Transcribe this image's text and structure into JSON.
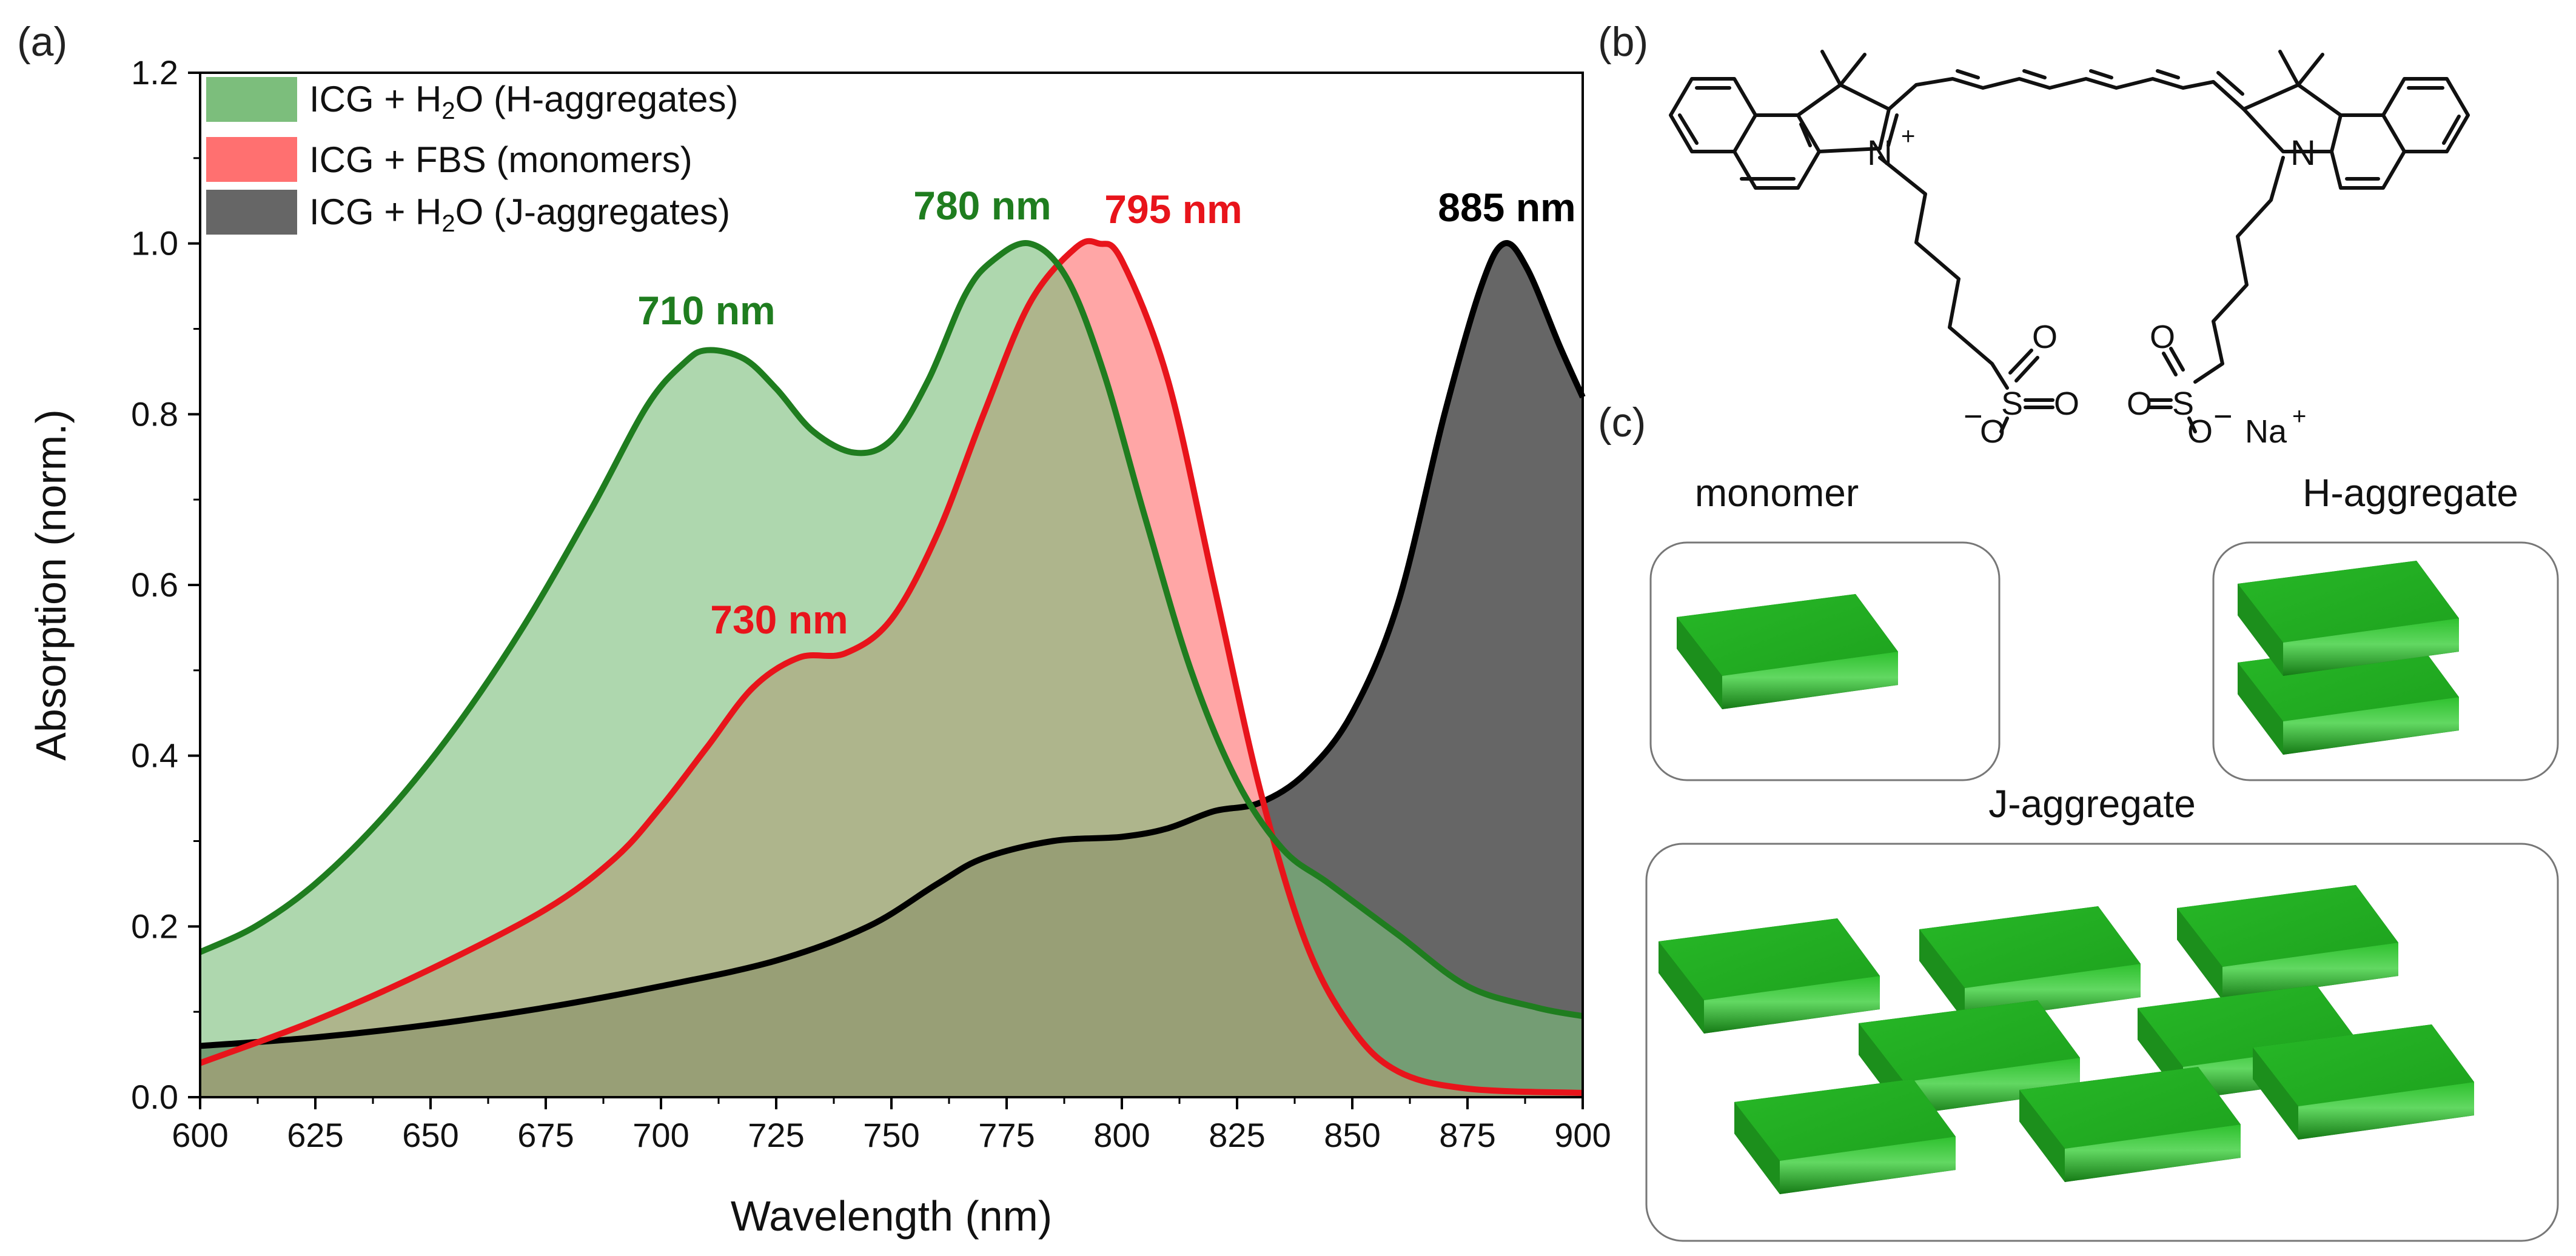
{
  "panel_labels": {
    "a": "(a)",
    "b": "(b)",
    "c": "(c)"
  },
  "chart_data": {
    "type": "area",
    "title": "",
    "xlabel": "Wavelength (nm)",
    "ylabel": "Absorption (norm.)",
    "xlim": [
      600,
      900
    ],
    "ylim": [
      0,
      1.2
    ],
    "xticks": [
      600,
      625,
      650,
      675,
      700,
      725,
      750,
      775,
      800,
      825,
      850,
      875,
      900
    ],
    "yticks": [
      0.0,
      0.2,
      0.4,
      0.6,
      0.8,
      1.0,
      1.2
    ],
    "grid": false,
    "legend_position": "top-left",
    "series": [
      {
        "name": "ICG + H2O (J-aggregates)",
        "legend_main": "ICG + H",
        "legend_sub": "2",
        "legend_rest": "O (J-aggregates)",
        "fill": "#666666",
        "stroke": "#000000",
        "x": [
          600,
          625,
          650,
          675,
          700,
          725,
          745,
          760,
          770,
          785,
          800,
          810,
          820,
          830,
          840,
          850,
          860,
          870,
          878,
          883,
          888,
          895,
          900
        ],
        "y": [
          0.06,
          0.07,
          0.085,
          0.105,
          0.13,
          0.16,
          0.2,
          0.25,
          0.28,
          0.3,
          0.305,
          0.315,
          0.335,
          0.345,
          0.38,
          0.45,
          0.58,
          0.8,
          0.95,
          1.0,
          0.97,
          0.88,
          0.82
        ]
      },
      {
        "name": "ICG + FBS (monomers)",
        "legend_main": "ICG + FBS (monomers)",
        "legend_sub": "",
        "legend_rest": "",
        "fill": "#ff7070",
        "stroke": "#e8141b",
        "x": [
          600,
          625,
          650,
          675,
          690,
          700,
          710,
          720,
          730,
          740,
          750,
          760,
          770,
          780,
          790,
          795,
          800,
          810,
          820,
          830,
          840,
          850,
          860,
          875,
          900
        ],
        "y": [
          0.04,
          0.09,
          0.15,
          0.22,
          0.28,
          0.34,
          0.41,
          0.48,
          0.515,
          0.52,
          0.56,
          0.66,
          0.8,
          0.93,
          0.995,
          1.0,
          0.98,
          0.84,
          0.6,
          0.36,
          0.18,
          0.08,
          0.03,
          0.01,
          0.005
        ]
      },
      {
        "name": "ICG + H2O (H-aggregates)",
        "legend_main": "ICG + H",
        "legend_sub": "2",
        "legend_rest": "O (H-aggregates)",
        "fill": "#7cbe7c",
        "stroke": "#1f7d1f",
        "x": [
          600,
          612,
          625,
          640,
          655,
          670,
          685,
          697,
          705,
          710,
          718,
          725,
          733,
          742,
          750,
          758,
          766,
          772,
          780,
          788,
          796,
          805,
          815,
          825,
          835,
          845,
          860,
          875,
          890,
          900
        ],
        "y": [
          0.17,
          0.2,
          0.25,
          0.33,
          0.43,
          0.55,
          0.69,
          0.81,
          0.86,
          0.875,
          0.865,
          0.83,
          0.78,
          0.755,
          0.77,
          0.84,
          0.94,
          0.98,
          1.0,
          0.96,
          0.85,
          0.68,
          0.5,
          0.37,
          0.29,
          0.25,
          0.19,
          0.13,
          0.105,
          0.095
        ]
      }
    ],
    "annotations": [
      {
        "text": "710 nm",
        "color": "#1f7d1f"
      },
      {
        "text": "780 nm",
        "color": "#1f7d1f"
      },
      {
        "text": "795 nm",
        "color": "#e8141b"
      },
      {
        "text": "730 nm",
        "color": "#e8141b"
      },
      {
        "text": "885 nm",
        "color": "#000000"
      }
    ]
  },
  "structure": {
    "n_plus": "N",
    "plus_sign": "+",
    "n_right": "N",
    "left_sulfonate": {
      "s": "S",
      "o_top": "O",
      "o_right": "O",
      "minus": "−",
      "o_bottom": "O"
    },
    "right_sulfonate": {
      "s": "S",
      "o_top": "O",
      "o_left": "O",
      "o_bottom": "O",
      "minus": "−",
      "na": "Na",
      "na_plus": "+"
    }
  },
  "aggregates": {
    "monomer_label": "monomer",
    "h_label": "H-aggregate",
    "j_label": "J-aggregate",
    "slab_top_color": "#22b322",
    "slab_front_color": "#1c8f1c",
    "slab_side_color": "#157015"
  }
}
